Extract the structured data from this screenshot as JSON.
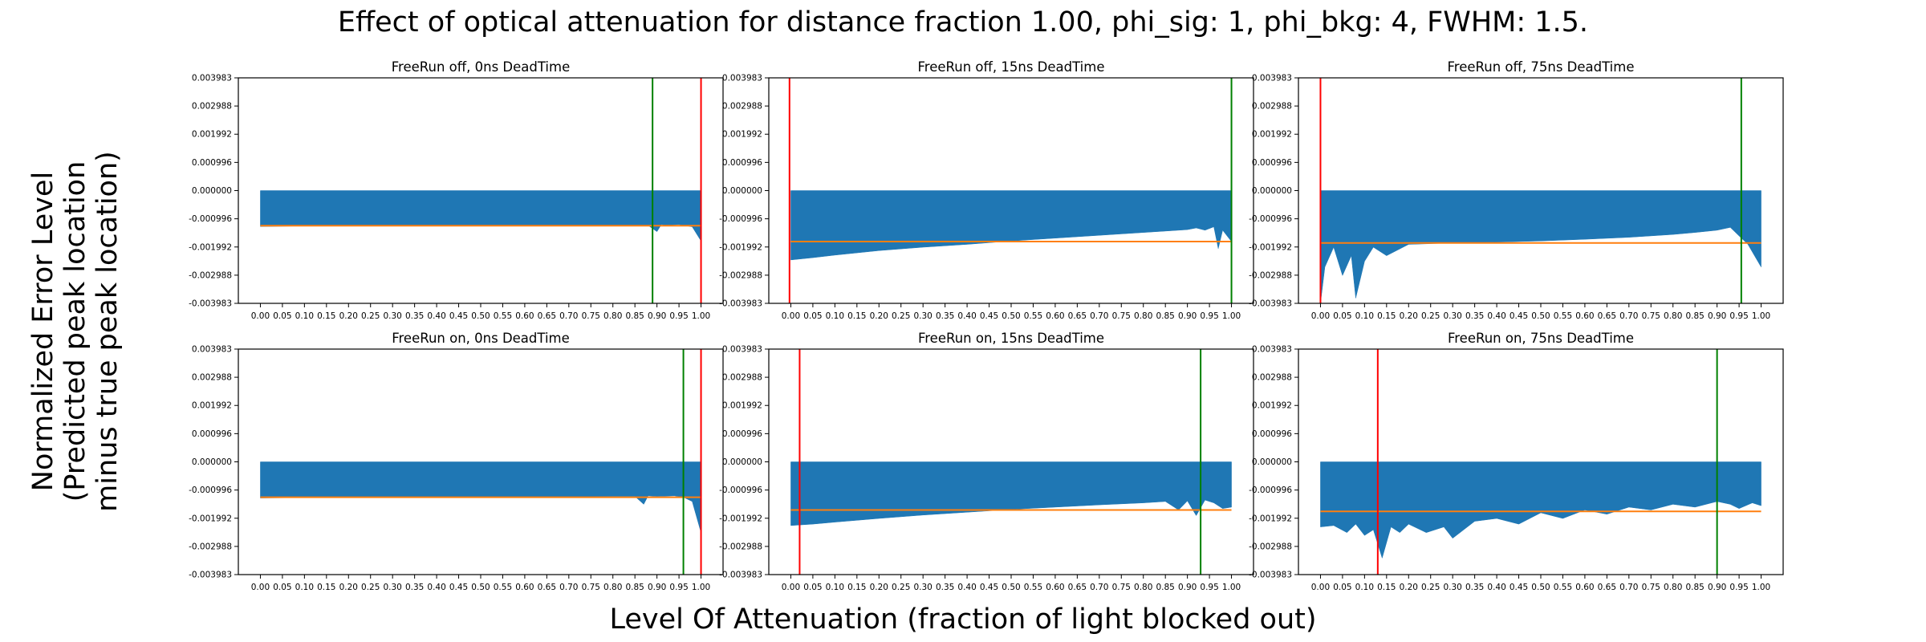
{
  "figure": {
    "title": "Effect of optical attenuation for distance fraction 1.00, phi_sig: 1, phi_bkg: 4, FWHM: 1.5.",
    "xlabel": "Level Of Attenuation (fraction of light blocked out)",
    "ylabel_lines": [
      "Normalized Error Level",
      "(Predicted peak location",
      "minus true peak location)"
    ]
  },
  "colors": {
    "fill": "#1f77b4",
    "mean": "#ff7f0e",
    "red": "#ff0000",
    "green": "#008000"
  },
  "shared_axes": {
    "yticks": [
      "0.003983",
      "0.002988",
      "0.001992",
      "0.000996",
      "0.000000",
      "-0.000996",
      "-0.001992",
      "-0.002988",
      "-0.003983"
    ],
    "ylim": [
      -0.003983,
      0.003983
    ],
    "xticks": [
      "0.00",
      "0.05",
      "0.10",
      "0.15",
      "0.20",
      "0.25",
      "0.30",
      "0.35",
      "0.40",
      "0.45",
      "0.50",
      "0.55",
      "0.60",
      "0.65",
      "0.70",
      "0.75",
      "0.80",
      "0.85",
      "0.90",
      "0.95",
      "1.00"
    ],
    "xlim": [
      -0.05,
      1.05
    ]
  },
  "chart_data": [
    {
      "type": "area",
      "title": "FreeRun off, 0ns DeadTime",
      "x": [
        0.0,
        0.1,
        0.2,
        0.3,
        0.4,
        0.5,
        0.6,
        0.7,
        0.8,
        0.85,
        0.88,
        0.9,
        0.91,
        0.92,
        0.95,
        0.98,
        1.0
      ],
      "y": [
        -0.00127,
        -0.00125,
        -0.00125,
        -0.00124,
        -0.00124,
        -0.00123,
        -0.00123,
        -0.00122,
        -0.00122,
        -0.00122,
        -0.00123,
        -0.00145,
        -0.0012,
        -0.00122,
        -0.0012,
        -0.00128,
        -0.00178
      ],
      "mean": -0.00124,
      "red_line": 1.0,
      "green_line": 0.89
    },
    {
      "type": "area",
      "title": "FreeRun off, 15ns DeadTime",
      "x": [
        0.0,
        0.05,
        0.1,
        0.2,
        0.3,
        0.4,
        0.5,
        0.6,
        0.7,
        0.8,
        0.85,
        0.9,
        0.92,
        0.94,
        0.96,
        0.97,
        0.98,
        1.0
      ],
      "y": [
        -0.00245,
        -0.00237,
        -0.00228,
        -0.00212,
        -0.002,
        -0.0019,
        -0.00178,
        -0.00168,
        -0.00158,
        -0.00148,
        -0.00143,
        -0.00138,
        -0.00132,
        -0.0014,
        -0.00128,
        -0.00205,
        -0.0014,
        -0.0018
      ],
      "mean": -0.0018,
      "red_line": -0.003,
      "green_line": 1.0
    },
    {
      "type": "area",
      "title": "FreeRun off, 75ns DeadTime",
      "x": [
        0.0,
        0.01,
        0.03,
        0.05,
        0.07,
        0.08,
        0.1,
        0.12,
        0.15,
        0.2,
        0.3,
        0.4,
        0.5,
        0.6,
        0.7,
        0.8,
        0.85,
        0.9,
        0.93,
        0.95,
        0.97,
        1.0
      ],
      "y": [
        -0.00398,
        -0.0027,
        -0.002,
        -0.003,
        -0.0023,
        -0.0038,
        -0.0025,
        -0.002,
        -0.0023,
        -0.0019,
        -0.00185,
        -0.00182,
        -0.00178,
        -0.00172,
        -0.00165,
        -0.00155,
        -0.00148,
        -0.0014,
        -0.0013,
        -0.0016,
        -0.0019,
        -0.0027
      ],
      "mean": -0.00185,
      "red_line": 0.0,
      "green_line": 0.955
    },
    {
      "type": "area",
      "title": "FreeRun on, 0ns DeadTime",
      "x": [
        0.0,
        0.1,
        0.2,
        0.3,
        0.4,
        0.5,
        0.6,
        0.7,
        0.8,
        0.85,
        0.87,
        0.88,
        0.9,
        0.94,
        0.96,
        0.98,
        1.0
      ],
      "y": [
        -0.00128,
        -0.00126,
        -0.00125,
        -0.00125,
        -0.00124,
        -0.00124,
        -0.00123,
        -0.00123,
        -0.00122,
        -0.00122,
        -0.0015,
        -0.0012,
        -0.00122,
        -0.0012,
        -0.00125,
        -0.0014,
        -0.0025
      ],
      "mean": -0.00125,
      "red_line": 1.0,
      "green_line": 0.96
    },
    {
      "type": "area",
      "title": "FreeRun on, 15ns DeadTime",
      "x": [
        0.0,
        0.05,
        0.1,
        0.2,
        0.3,
        0.4,
        0.5,
        0.6,
        0.7,
        0.8,
        0.85,
        0.88,
        0.9,
        0.92,
        0.94,
        0.96,
        0.98,
        1.0
      ],
      "y": [
        -0.00225,
        -0.0022,
        -0.00213,
        -0.002,
        -0.00188,
        -0.00178,
        -0.00168,
        -0.0016,
        -0.00152,
        -0.00145,
        -0.0014,
        -0.0017,
        -0.00138,
        -0.0019,
        -0.00135,
        -0.00145,
        -0.00165,
        -0.0016
      ],
      "mean": -0.0017,
      "red_line": 0.02,
      "green_line": 0.93
    },
    {
      "type": "area",
      "title": "FreeRun on, 75ns DeadTime",
      "x": [
        0.0,
        0.03,
        0.06,
        0.08,
        0.1,
        0.12,
        0.14,
        0.16,
        0.18,
        0.2,
        0.24,
        0.28,
        0.3,
        0.35,
        0.4,
        0.45,
        0.5,
        0.55,
        0.6,
        0.65,
        0.7,
        0.75,
        0.8,
        0.85,
        0.9,
        0.93,
        0.95,
        0.98,
        1.0
      ],
      "y": [
        -0.0023,
        -0.00225,
        -0.0025,
        -0.0022,
        -0.0026,
        -0.0024,
        -0.0034,
        -0.0023,
        -0.0025,
        -0.0022,
        -0.0025,
        -0.0023,
        -0.0027,
        -0.0021,
        -0.002,
        -0.0022,
        -0.0018,
        -0.002,
        -0.0017,
        -0.00185,
        -0.0016,
        -0.0017,
        -0.0015,
        -0.0016,
        -0.0014,
        -0.0015,
        -0.00165,
        -0.00145,
        -0.00155
      ],
      "mean": -0.00175,
      "red_line": 0.13,
      "green_line": 0.9
    }
  ]
}
